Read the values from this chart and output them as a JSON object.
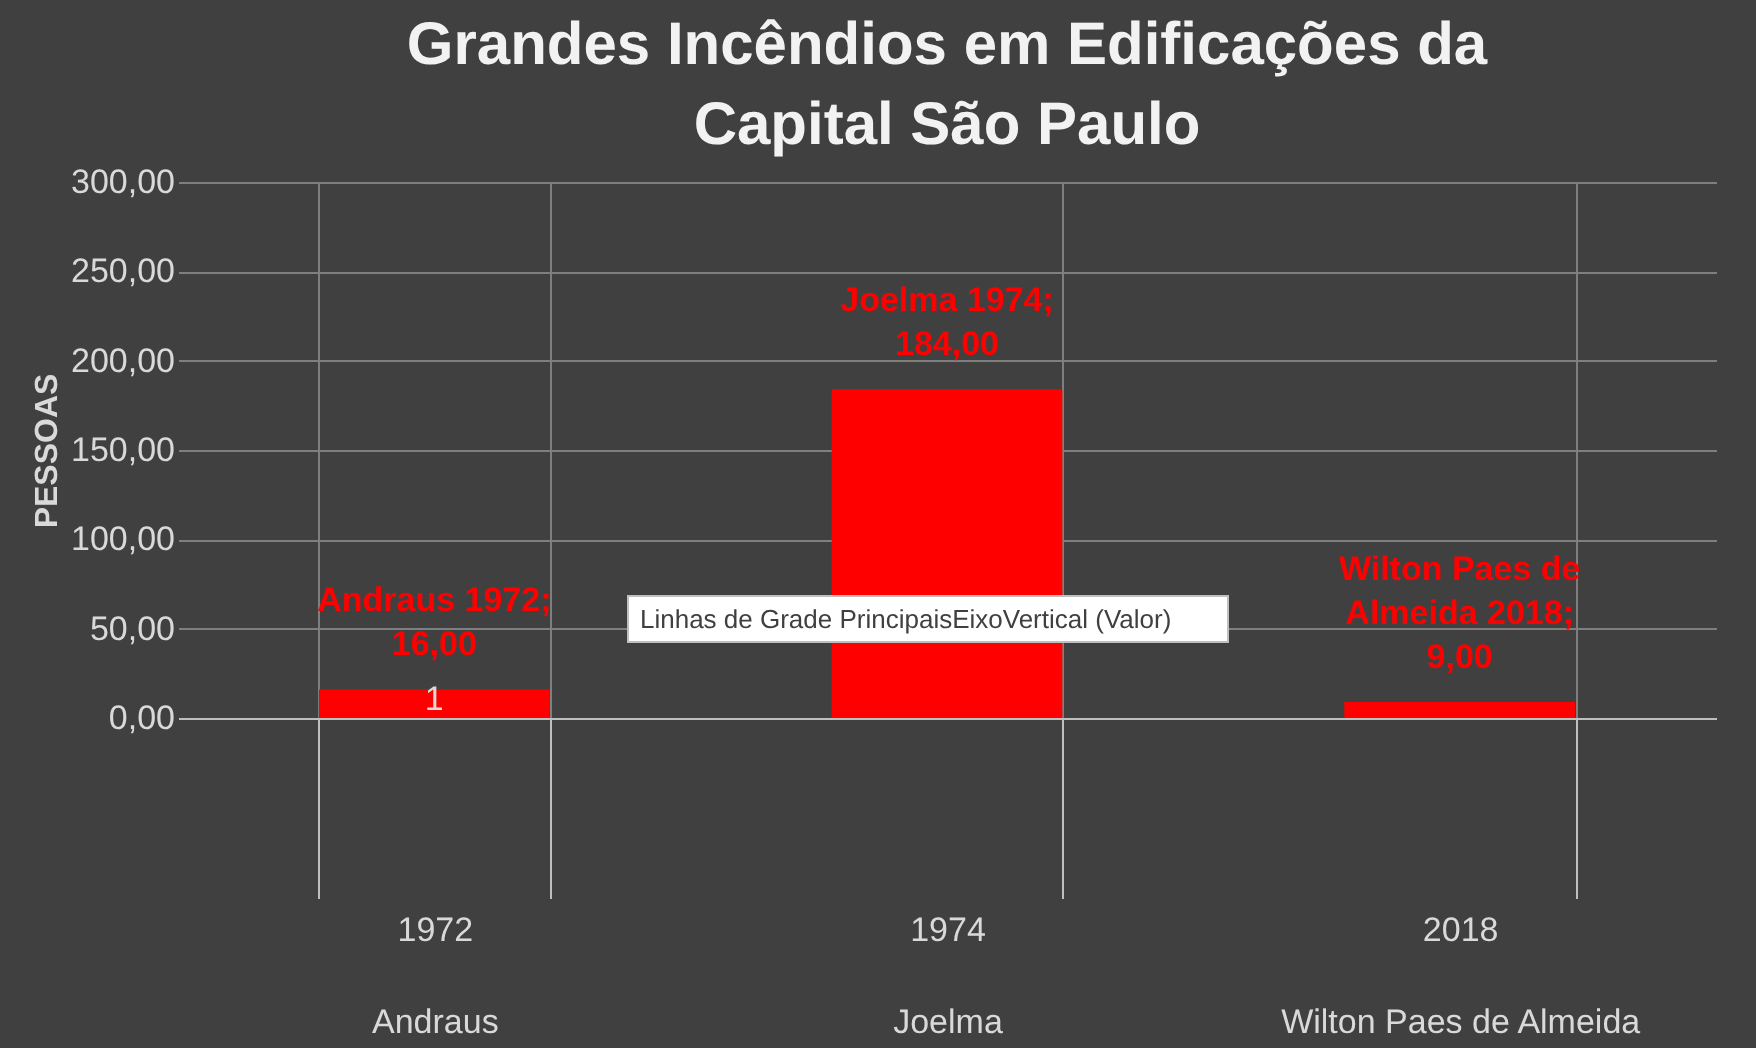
{
  "chart_data": {
    "type": "bar",
    "title": "Grandes Incêndios em Edificações da\nCapital São Paulo",
    "categories": [
      "1972\nAndraus",
      "1974\nJoelma",
      "2018\nWilton Paes de Almeida"
    ],
    "values": [
      16,
      184,
      9
    ],
    "color": "#ff0000",
    "value_labels": [
      "Andraus  1972;\n16,00",
      "Joelma 1974;\n184,00",
      "Wilton Paes de\nAlmeida 2018;\n9,00"
    ],
    "ylabel": "PESSOAS",
    "ylim": [
      0,
      300
    ],
    "yticks": [
      {
        "value": 0,
        "label": "0,00"
      },
      {
        "value": 50,
        "label": "50,00"
      },
      {
        "value": 100,
        "label": "100,00"
      },
      {
        "value": 150,
        "label": "150,00"
      },
      {
        "value": 200,
        "label": "200,00"
      },
      {
        "value": 250,
        "label": "250,00"
      },
      {
        "value": 300,
        "label": "300,00"
      }
    ],
    "grid": true,
    "legend": false,
    "annotations": [
      {
        "text": "1",
        "x": "1972\nAndraus",
        "y": 0
      },
      "Linhas de Grade PrincipaisEixoVertical (Valor)"
    ]
  }
}
